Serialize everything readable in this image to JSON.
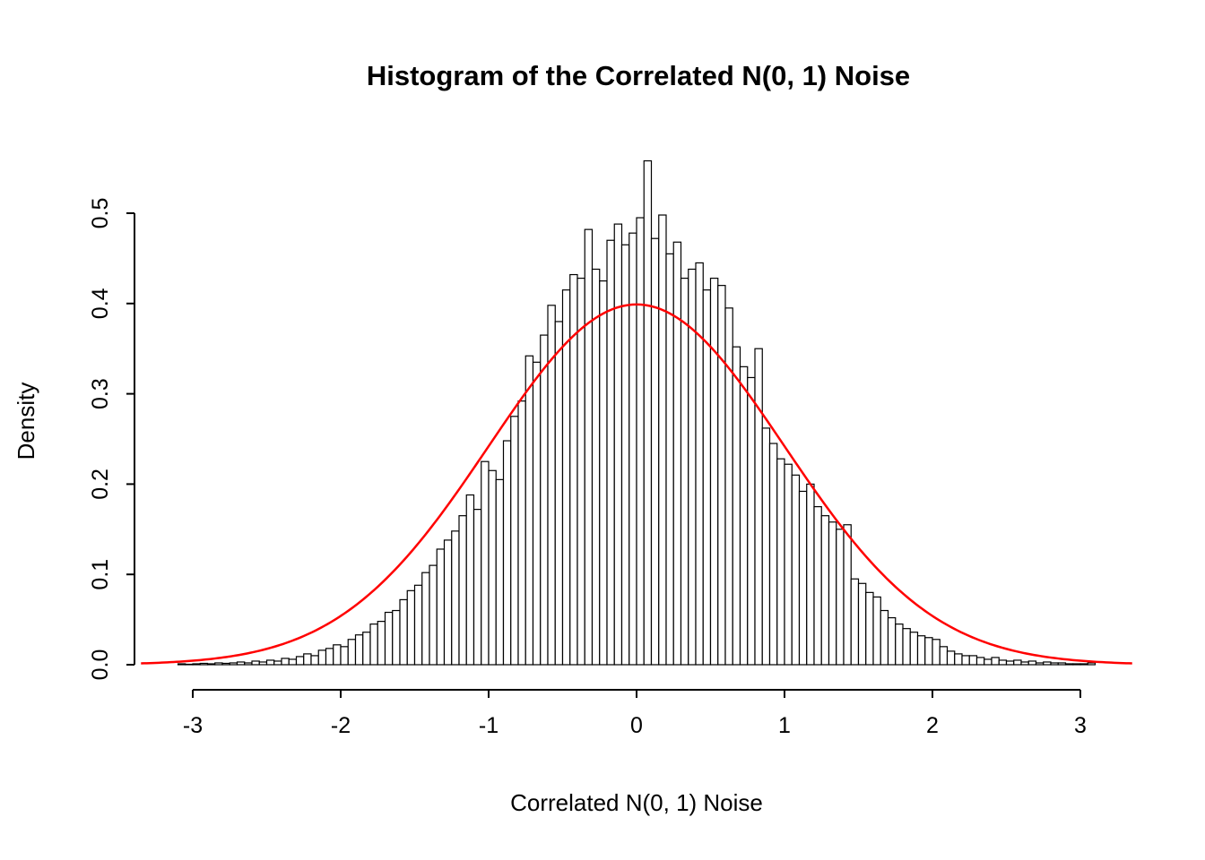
{
  "chart_data": {
    "type": "bar",
    "subtype": "histogram",
    "title": "Histogram of the Correlated N(0, 1) Noise",
    "xlabel": "Correlated N(0, 1) Noise",
    "ylabel": "Density",
    "grid": false,
    "legend": false,
    "xlim": [
      -3.35,
      3.35
    ],
    "ylim": [
      0,
      0.56
    ],
    "x_ticks": [
      -3,
      -2,
      -1,
      0,
      1,
      2,
      3
    ],
    "x_tick_labels": [
      "-3",
      "-2",
      "-1",
      "0",
      "1",
      "2",
      "3"
    ],
    "y_ticks": [
      0.0,
      0.1,
      0.2,
      0.3,
      0.4,
      0.5
    ],
    "y_tick_labels": [
      "0.0",
      "0.1",
      "0.2",
      "0.3",
      "0.4",
      "0.5"
    ],
    "bin_start": -3.1,
    "bin_width": 0.05,
    "bar_fill": "#ffffff",
    "bar_stroke": "#000000",
    "densities": [
      0.001,
      0.0005,
      0.001,
      0.0015,
      0.001,
      0.002,
      0.0015,
      0.002,
      0.003,
      0.002,
      0.004,
      0.003,
      0.005,
      0.004,
      0.007,
      0.006,
      0.009,
      0.012,
      0.01,
      0.016,
      0.018,
      0.022,
      0.02,
      0.028,
      0.033,
      0.036,
      0.045,
      0.048,
      0.058,
      0.06,
      0.072,
      0.082,
      0.088,
      0.102,
      0.11,
      0.128,
      0.138,
      0.148,
      0.165,
      0.188,
      0.172,
      0.225,
      0.215,
      0.205,
      0.248,
      0.275,
      0.292,
      0.342,
      0.335,
      0.365,
      0.398,
      0.38,
      0.415,
      0.432,
      0.428,
      0.482,
      0.438,
      0.425,
      0.47,
      0.488,
      0.465,
      0.478,
      0.495,
      0.558,
      0.472,
      0.498,
      0.455,
      0.468,
      0.428,
      0.438,
      0.445,
      0.415,
      0.428,
      0.42,
      0.395,
      0.352,
      0.33,
      0.318,
      0.35,
      0.262,
      0.245,
      0.228,
      0.222,
      0.21,
      0.192,
      0.2,
      0.175,
      0.165,
      0.158,
      0.15,
      0.155,
      0.095,
      0.09,
      0.08,
      0.075,
      0.06,
      0.052,
      0.045,
      0.04,
      0.036,
      0.032,
      0.03,
      0.028,
      0.02,
      0.015,
      0.012,
      0.01,
      0.01,
      0.008,
      0.006,
      0.008,
      0.005,
      0.004,
      0.005,
      0.003,
      0.004,
      0.002,
      0.003,
      0.002,
      0.002,
      0.001,
      0.001,
      0.001,
      0.002
    ],
    "overlay_curve": {
      "name": "standard-normal-density",
      "distribution": "normal",
      "mean": 0,
      "sd": 1,
      "color": "#ff0000",
      "x_range": [
        -3.35,
        3.35
      ]
    }
  }
}
